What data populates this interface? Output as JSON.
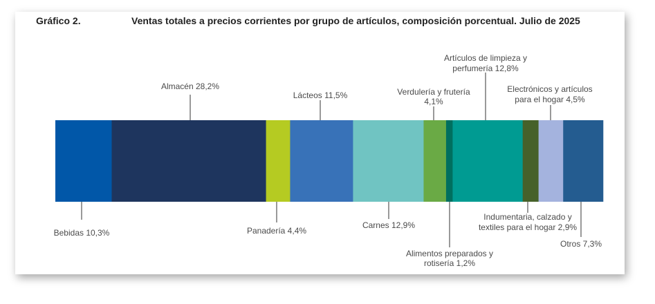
{
  "chart_data": {
    "type": "bar",
    "orientation": "horizontal-stacked-100",
    "figure_label": "Gráfico 2.",
    "title": "Ventas totales a precios corrientes por grupo de artículos, composición porcentual. Julio de 2025",
    "unit": "%",
    "series": [
      {
        "name": "Bebidas",
        "value": 10.3,
        "label": [
          "Bebidas 10,3%"
        ],
        "color": "#0157A8"
      },
      {
        "name": "Almacén",
        "value": 28.2,
        "label": [
          "Almacén 28,2%"
        ],
        "color": "#1E355E"
      },
      {
        "name": "Panadería",
        "value": 4.4,
        "label": [
          "Panadería 4,4%"
        ],
        "color": "#B5CB22"
      },
      {
        "name": "Lácteos",
        "value": 11.5,
        "label": [
          "Lácteos 11,5%"
        ],
        "color": "#3872B8"
      },
      {
        "name": "Carnes",
        "value": 12.9,
        "label": [
          "Carnes 12,9%"
        ],
        "color": "#70C4C2"
      },
      {
        "name": "Verdulería y frutería",
        "value": 4.1,
        "label": [
          "Verdulería y frutería",
          "4,1%"
        ],
        "color": "#6AAA45"
      },
      {
        "name": "Alimentos preparados y rotisería",
        "value": 1.2,
        "label": [
          "Alimentos preparados y",
          "rotisería 1,2%"
        ],
        "color": "#006F5F"
      },
      {
        "name": "Artículos de limpieza y perfumería",
        "value": 12.8,
        "label": [
          "Artículos de limpieza y",
          "perfumería 12,8%"
        ],
        "color": "#009B92"
      },
      {
        "name": "Indumentaria, calzado y textiles para el hogar",
        "value": 2.9,
        "label": [
          "Indumentaria, calzado y",
          "textiles para el hogar 2,9%"
        ],
        "color": "#46612A"
      },
      {
        "name": "Electrónicos y artículos para el hogar",
        "value": 4.5,
        "label": [
          "Electrónicos y artículos",
          "para el hogar 4,5%"
        ],
        "color": "#A4B3DE"
      },
      {
        "name": "Otros",
        "value": 7.3,
        "label": [
          "Otros 7,3%"
        ],
        "color": "#245C90"
      }
    ]
  }
}
